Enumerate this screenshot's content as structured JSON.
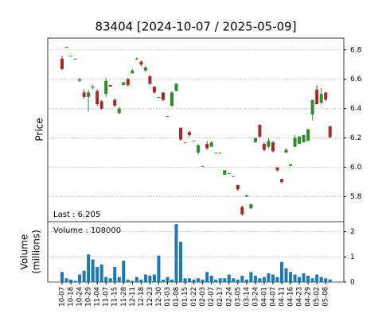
{
  "chart_data": {
    "type": "candlestick",
    "title": "83404   [2024-10-07 / 2025-05-09]",
    "ylabel": "Price",
    "volume_label": "Volume",
    "volume_unit": "(millions)",
    "last_note": "Last : 6.205",
    "volume_note": "Volume : 108000",
    "up_color": "#2e8b2e",
    "down_color": "#a52a2a",
    "volume_color": "#1f77b4",
    "grid": true,
    "ylim": [
      5.63,
      6.88
    ],
    "yticks": [
      5.8,
      {
        "value": 6.0,
        "label": "6.0"
      },
      6.2,
      6.4,
      6.6,
      6.8
    ],
    "y2lim": [
      0,
      2.4
    ],
    "y2ticks": [
      0,
      1,
      2
    ],
    "categories": [
      "10-07",
      null,
      "10-18",
      null,
      "10-24",
      null,
      "10-29",
      null,
      "11-04",
      null,
      "11-07",
      null,
      "11-15",
      null,
      "11-28",
      null,
      "12-11",
      null,
      "12-18",
      null,
      "12-23",
      null,
      "12-30",
      null,
      "01-03",
      null,
      "01-08",
      null,
      "01-15",
      null,
      "01-22",
      null,
      "02-03",
      null,
      "02-07",
      null,
      "02-17",
      null,
      "02-24",
      null,
      "03-05",
      null,
      "03-14",
      null,
      "03-24",
      null,
      "04-01",
      null,
      "04-07",
      null,
      "04-11",
      null,
      "04-16",
      null,
      "04-23",
      null,
      "04-29",
      null,
      "05-02",
      null,
      "05-08",
      null
    ],
    "open": [
      6.74,
      6.82,
      6.76,
      6.74,
      6.59,
      6.51,
      6.48,
      6.55,
      6.52,
      6.45,
      6.5,
      6.56,
      6.46,
      6.37,
      6.56,
      6.6,
      6.64,
      6.74,
      6.72,
      6.66,
      6.62,
      6.55,
      6.48,
      6.51,
      6.35,
      6.42,
      6.52,
      6.27,
      6.17,
      6.24,
      6.18,
      6.1,
      6.01,
      6.16,
      6.14,
      6.1,
      6.1,
      5.95,
      5.96,
      5.94,
      5.88,
      5.73,
      5.8,
      5.72,
      6.17,
      6.29,
      6.16,
      6.14,
      6.17,
      6.0,
      5.92,
      6.1,
      6.01,
      6.14,
      6.16,
      6.17,
      6.18,
      6.36,
      6.53,
      6.44,
      6.51,
      6.28
    ],
    "high": [
      6.76,
      6.82,
      6.76,
      6.74,
      6.61,
      6.53,
      6.53,
      6.56,
      6.53,
      6.46,
      6.61,
      6.56,
      6.47,
      6.41,
      6.58,
      6.61,
      6.67,
      6.75,
      6.73,
      6.69,
      6.63,
      6.55,
      6.48,
      6.51,
      6.35,
      6.52,
      6.57,
      6.27,
      6.17,
      6.25,
      6.18,
      6.16,
      6.01,
      6.18,
      6.18,
      6.1,
      6.1,
      5.98,
      5.96,
      5.94,
      5.88,
      5.74,
      5.81,
      5.75,
      6.2,
      6.29,
      6.17,
      6.2,
      6.18,
      6.0,
      5.92,
      6.13,
      6.02,
      6.22,
      6.21,
      6.22,
      6.26,
      6.46,
      6.56,
      6.54,
      6.51,
      6.28
    ],
    "low": [
      6.66,
      6.82,
      6.76,
      6.74,
      6.58,
      6.47,
      6.38,
      6.53,
      6.42,
      6.39,
      6.48,
      6.55,
      6.41,
      6.36,
      6.56,
      6.55,
      6.64,
      6.73,
      6.69,
      6.65,
      6.56,
      6.5,
      6.47,
      6.45,
      6.35,
      6.41,
      6.52,
      6.18,
      6.17,
      6.21,
      6.18,
      6.09,
      6.01,
      6.12,
      6.14,
      6.1,
      6.1,
      5.95,
      5.96,
      5.94,
      5.84,
      5.67,
      5.8,
      5.72,
      6.17,
      6.2,
      6.11,
      6.13,
      6.1,
      5.97,
      5.89,
      6.1,
      6.01,
      6.14,
      6.16,
      6.17,
      6.18,
      6.32,
      6.43,
      6.43,
      6.45,
      6.2
    ],
    "close": [
      6.67,
      6.82,
      6.76,
      6.74,
      6.6,
      6.48,
      6.51,
      6.55,
      6.43,
      6.4,
      6.59,
      6.55,
      6.42,
      6.4,
      6.58,
      6.56,
      6.66,
      6.74,
      6.7,
      6.68,
      6.57,
      6.51,
      6.48,
      6.46,
      6.35,
      6.51,
      6.57,
      6.19,
      6.17,
      6.22,
      6.18,
      6.15,
      6.01,
      6.13,
      6.17,
      6.1,
      6.1,
      5.98,
      5.96,
      5.94,
      5.85,
      5.68,
      5.81,
      5.75,
      6.2,
      6.21,
      6.12,
      6.18,
      6.11,
      5.98,
      5.9,
      6.12,
      6.02,
      6.2,
      6.21,
      6.22,
      6.26,
      6.46,
      6.43,
      6.5,
      6.46,
      6.205
    ],
    "volume": [
      0.4,
      0.15,
      0.1,
      0.05,
      0.3,
      0.45,
      1.1,
      0.9,
      0.6,
      0.7,
      0.2,
      0.15,
      0.6,
      0.2,
      0.85,
      0.1,
      0.05,
      0.2,
      0.1,
      0.3,
      0.25,
      0.3,
      1.05,
      0.1,
      0.2,
      0.1,
      2.3,
      1.6,
      0.15,
      0.15,
      0.1,
      0.15,
      0.1,
      0.4,
      0.25,
      0.1,
      0.15,
      0.15,
      0.3,
      0.15,
      0.1,
      0.25,
      0.1,
      0.4,
      0.25,
      0.15,
      0.2,
      0.35,
      0.3,
      0.2,
      0.8,
      0.55,
      0.4,
      0.3,
      0.2,
      0.35,
      0.25,
      0.15,
      0.3,
      0.2,
      0.15,
      0.108
    ]
  }
}
